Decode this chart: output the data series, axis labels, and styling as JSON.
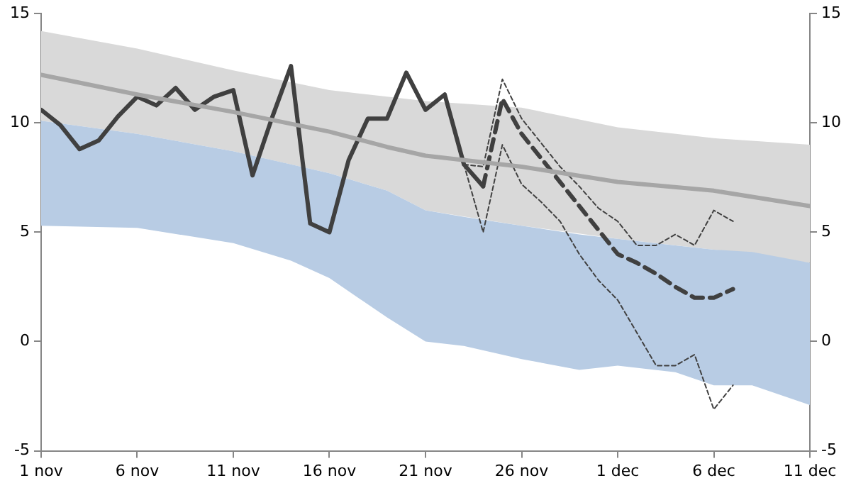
{
  "chart_data": {
    "type": "line",
    "xlim": [
      "--11-01",
      "--12-11"
    ],
    "xticks": [
      {
        "value": "--11-01",
        "label": "1 nov"
      },
      {
        "value": "--11-06",
        "label": "6 nov"
      },
      {
        "value": "--11-11",
        "label": "11 nov"
      },
      {
        "value": "--11-16",
        "label": "16 nov"
      },
      {
        "value": "--11-21",
        "label": "21 nov"
      },
      {
        "value": "--11-26",
        "label": "26 nov"
      },
      {
        "value": "--12-01",
        "label": "1 dec"
      },
      {
        "value": "--12-06",
        "label": "6 dec"
      },
      {
        "value": "--12-11",
        "label": "11 dec"
      }
    ],
    "ylim": [
      -5,
      15
    ],
    "yticks": [
      -5,
      0,
      5,
      10,
      15
    ],
    "y2lim": [
      -5,
      15
    ],
    "y2ticks": [
      -5,
      0,
      5,
      10,
      15
    ],
    "grid": false,
    "legend": false,
    "marker": "none",
    "series": [
      {
        "color": "#b8cce4",
        "x": [
          "--11-01",
          "--11-06",
          "--11-11",
          "--11-14",
          "--11-16",
          "--11-19",
          "--11-21",
          "--11-23",
          "--11-26",
          "--11-29",
          "--12-01",
          "--12-04",
          "--12-06",
          "--12-08",
          "--12-11"
        ],
        "values": [
          null,
          null,
          null,
          null,
          null,
          null,
          null,
          null,
          null,
          null,
          null,
          null,
          null,
          null,
          null
        ],
        "upper": [
          10.1,
          9.5,
          8.7,
          8.1,
          7.7,
          6.9,
          6.0,
          5.7,
          5.3,
          4.9,
          4.7,
          4.4,
          4.2,
          4.1,
          3.6
        ],
        "lower": [
          5.3,
          5.2,
          4.5,
          3.7,
          2.9,
          1.1,
          0.0,
          -0.2,
          -0.8,
          -1.3,
          -1.1,
          -1.4,
          -2.0,
          -2.0,
          -2.9
        ]
      },
      {
        "color": "#d9d9d9",
        "x": [
          "--11-01",
          "--11-06",
          "--11-11",
          "--11-16",
          "--11-19",
          "--11-21",
          "--11-26",
          "--12-01",
          "--12-06",
          "--12-11"
        ],
        "values": [
          null,
          null,
          null,
          null,
          null,
          null,
          null,
          null,
          null,
          null
        ],
        "lower": [
          10.1,
          9.5,
          8.7,
          7.7,
          6.9,
          6.0,
          5.3,
          4.7,
          4.2,
          3.6
        ],
        "upper": [
          14.2,
          13.4,
          12.4,
          11.5,
          11.2,
          11.0,
          10.7,
          9.8,
          9.3,
          9.0
        ]
      },
      {
        "color": "#a6a6a6",
        "x": [
          "--11-01",
          "--11-06",
          "--11-11",
          "--11-16",
          "--11-19",
          "--11-21",
          "--11-26",
          "--12-01",
          "--12-06",
          "--12-11"
        ],
        "values": [
          12.2,
          11.3,
          10.5,
          9.6,
          8.9,
          8.5,
          8.0,
          7.3,
          6.9,
          6.2
        ]
      },
      {
        "color": "#404040",
        "line_style": "solid",
        "x": [
          "--11-01",
          "--11-02",
          "--11-03",
          "--11-04",
          "--11-05",
          "--11-06",
          "--11-07",
          "--11-08",
          "--11-09",
          "--11-10",
          "--11-11",
          "--11-12",
          "--11-13",
          "--11-14",
          "--11-15",
          "--11-16",
          "--11-17",
          "--11-18",
          "--11-19",
          "--11-20",
          "--11-21",
          "--11-22",
          "--11-23",
          "--11-24"
        ],
        "values": [
          10.6,
          9.9,
          8.8,
          9.2,
          10.3,
          11.2,
          10.8,
          11.6,
          10.6,
          11.2,
          11.5,
          7.6,
          10.2,
          12.6,
          5.4,
          5.0,
          8.3,
          10.2,
          10.2,
          12.3,
          10.6,
          11.3,
          8.1,
          7.1
        ]
      },
      {
        "color": "#404040",
        "line_style": "dashed",
        "x": [
          "--11-24",
          "--11-25",
          "--11-26",
          "--11-27",
          "--11-28",
          "--11-29",
          "--11-30",
          "--12-01",
          "--12-02",
          "--12-03",
          "--12-04",
          "--12-05",
          "--12-06",
          "--12-07"
        ],
        "values": [
          7.1,
          11.1,
          9.5,
          8.4,
          7.3,
          6.2,
          5.1,
          4.0,
          3.6,
          3.1,
          2.5,
          2.0,
          2.0,
          2.4
        ]
      },
      {
        "color": "#404040",
        "line_style": "dotted",
        "x": [
          "--11-23",
          "--11-24",
          "--11-25",
          "--11-26",
          "--11-27",
          "--11-28",
          "--11-29",
          "--11-30",
          "--12-01",
          "--12-02",
          "--12-03",
          "--12-04",
          "--12-05",
          "--12-06",
          "--12-07"
        ],
        "values": [
          8.1,
          8.0,
          12.0,
          10.2,
          9.1,
          8.0,
          7.1,
          6.1,
          5.5,
          4.4,
          4.4,
          4.9,
          4.4,
          6.0,
          5.5
        ]
      },
      {
        "color": "#404040",
        "line_style": "dotted",
        "x": [
          "--11-23",
          "--11-24",
          "--11-25",
          "--11-26",
          "--11-27",
          "--11-28",
          "--11-29",
          "--11-30",
          "--12-01",
          "--12-02",
          "--12-03",
          "--12-04",
          "--12-05",
          "--12-06",
          "--12-07"
        ],
        "values": [
          8.1,
          5.0,
          9.0,
          7.2,
          6.4,
          5.5,
          4.0,
          2.8,
          1.9,
          0.4,
          -1.1,
          -1.1,
          -0.6,
          -3.1,
          -2.0
        ]
      }
    ]
  }
}
